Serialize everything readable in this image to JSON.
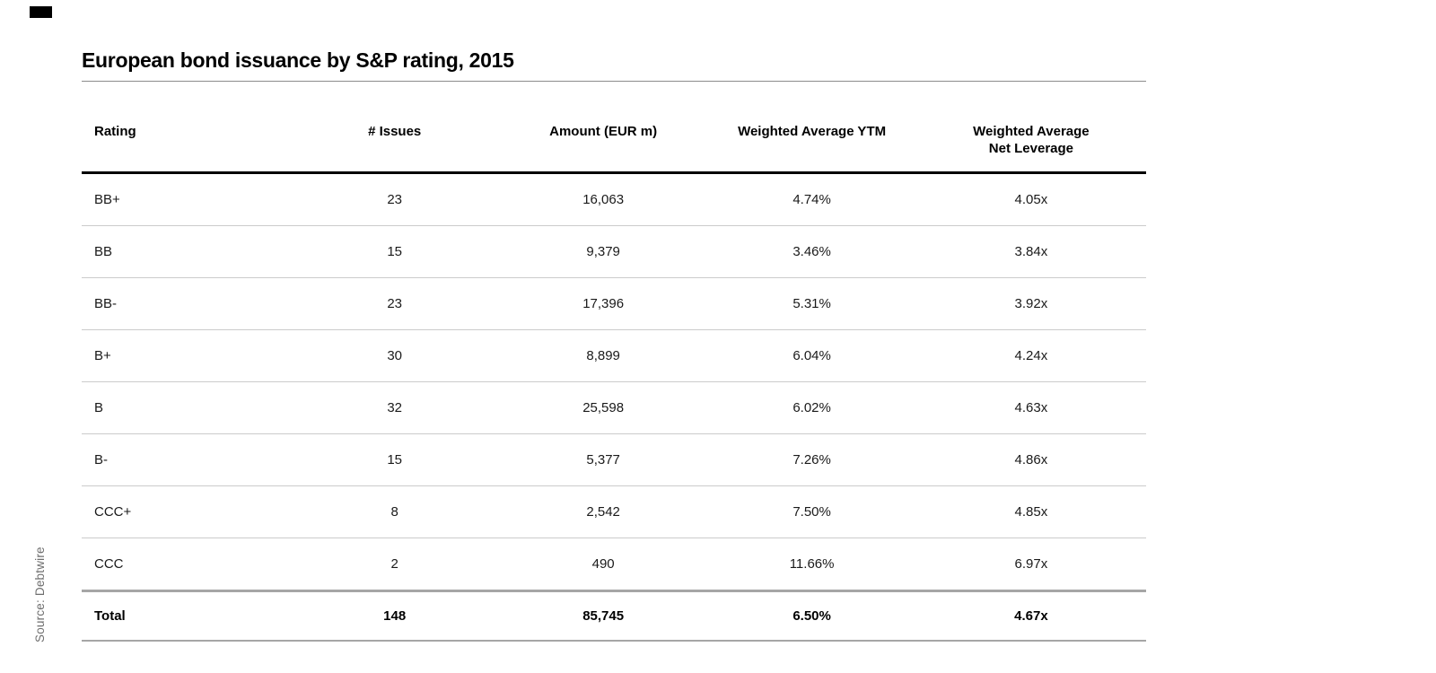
{
  "header": {
    "title": "European bond issuance by S&P rating, 2015"
  },
  "table": {
    "columns": [
      "Rating",
      "# Issues",
      "Amount (EUR m)",
      "Weighted Average YTM",
      "Weighted Average\nNet Leverage"
    ],
    "rows": [
      {
        "rating": "BB+",
        "issues": "23",
        "amount": "16,063",
        "ytm": "4.74%",
        "leverage": "4.05x"
      },
      {
        "rating": "BB",
        "issues": "15",
        "amount": "9,379",
        "ytm": "3.46%",
        "leverage": "3.84x"
      },
      {
        "rating": "BB-",
        "issues": "23",
        "amount": "17,396",
        "ytm": "5.31%",
        "leverage": "3.92x"
      },
      {
        "rating": "B+",
        "issues": "30",
        "amount": "8,899",
        "ytm": "6.04%",
        "leverage": "4.24x"
      },
      {
        "rating": "B",
        "issues": "32",
        "amount": "25,598",
        "ytm": "6.02%",
        "leverage": "4.63x"
      },
      {
        "rating": "B-",
        "issues": "15",
        "amount": "5,377",
        "ytm": "7.26%",
        "leverage": "4.86x"
      },
      {
        "rating": "CCC+",
        "issues": "8",
        "amount": "2,542",
        "ytm": "7.50%",
        "leverage": "4.85x"
      },
      {
        "rating": "CCC",
        "issues": "2",
        "amount": "490",
        "ytm": "11.66%",
        "leverage": "6.97x"
      },
      {
        "rating": "Total",
        "issues": "148",
        "amount": "85,745",
        "ytm": "6.50%",
        "leverage": "4.67x",
        "is_total": true
      }
    ]
  },
  "footer": {
    "source": "Source: Debtwire"
  },
  "colors": {
    "text": "#1a1a1a",
    "title_rule": "#8c8c8c",
    "header_border": "#000000",
    "row_divider": "#cbcbcb",
    "total_divider": "#a6a6a6",
    "source_text": "#6e6e6e",
    "logo": "#000000"
  },
  "chart_data": {
    "type": "table",
    "title": "European bond issuance by S&P rating, 2015",
    "columns": [
      "Rating",
      "# Issues",
      "Amount (EUR m)",
      "Weighted Average YTM",
      "Weighted Average Net Leverage"
    ],
    "rows": [
      [
        "BB+",
        23,
        16063,
        "4.74%",
        "4.05x"
      ],
      [
        "BB",
        15,
        9379,
        "3.46%",
        "3.84x"
      ],
      [
        "BB-",
        23,
        17396,
        "5.31%",
        "3.92x"
      ],
      [
        "B+",
        30,
        8899,
        "6.04%",
        "4.24x"
      ],
      [
        "B",
        32,
        25598,
        "6.02%",
        "4.63x"
      ],
      [
        "B-",
        15,
        5377,
        "7.26%",
        "4.86x"
      ],
      [
        "CCC+",
        8,
        2542,
        "7.50%",
        "4.85x"
      ],
      [
        "CCC",
        2,
        490,
        "11.66%",
        "6.97x"
      ]
    ],
    "total_row": [
      "Total",
      148,
      85745,
      "6.50%",
      "4.67x"
    ],
    "source": "Source: Debtwire"
  }
}
